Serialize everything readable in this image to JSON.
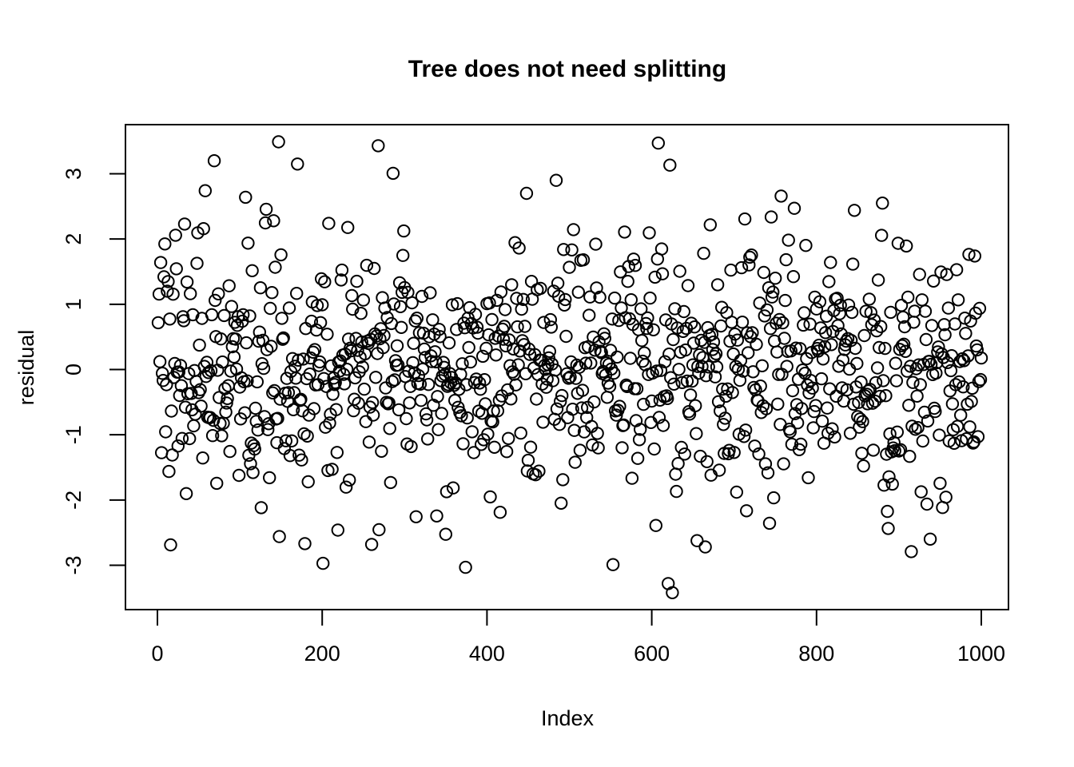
{
  "chart_data": {
    "type": "scatter",
    "title": "Tree does not need splitting",
    "xlabel": "Index",
    "ylabel": "residual",
    "x_ticks": [
      0,
      200,
      400,
      600,
      800,
      1000
    ],
    "y_ticks": [
      -3,
      -2,
      -1,
      0,
      1,
      2,
      3
    ],
    "xlim": [
      -39,
      1040
    ],
    "ylim": [
      -3.7,
      3.77
    ],
    "grid": false,
    "legend": null,
    "n_points": 1000,
    "x_description": "observation index 1..1000",
    "y_distribution": {
      "type": "normal",
      "mean": 0,
      "sd": 1,
      "seed": 1375243
    },
    "y_clip": [
      -3.45,
      3.5
    ],
    "notable_points": [
      {
        "x": 147,
        "y": 3.49
      },
      {
        "x": 268,
        "y": 3.43
      },
      {
        "x": 608,
        "y": 3.47
      },
      {
        "x": 69,
        "y": 3.2
      },
      {
        "x": 58,
        "y": 2.74
      },
      {
        "x": 107,
        "y": 2.64
      },
      {
        "x": 484,
        "y": 2.9
      },
      {
        "x": 448,
        "y": 2.7
      },
      {
        "x": 880,
        "y": 2.55
      },
      {
        "x": 33,
        "y": 2.23
      },
      {
        "x": 141,
        "y": 2.28
      },
      {
        "x": 208,
        "y": 2.24
      },
      {
        "x": 201,
        "y": -2.97
      },
      {
        "x": 620,
        "y": -3.28
      },
      {
        "x": 625,
        "y": -3.42
      },
      {
        "x": 553,
        "y": -2.99
      },
      {
        "x": 260,
        "y": -2.68
      },
      {
        "x": 915,
        "y": -2.79
      },
      {
        "x": 938,
        "y": -2.6
      }
    ],
    "marker": {
      "shape": "open-circle",
      "radius_px": 7.2,
      "stroke": "#000000",
      "stroke_width": 2,
      "fill": "none"
    },
    "colors": {
      "background": "#ffffff",
      "axis": "#000000",
      "text": "#000000"
    }
  }
}
